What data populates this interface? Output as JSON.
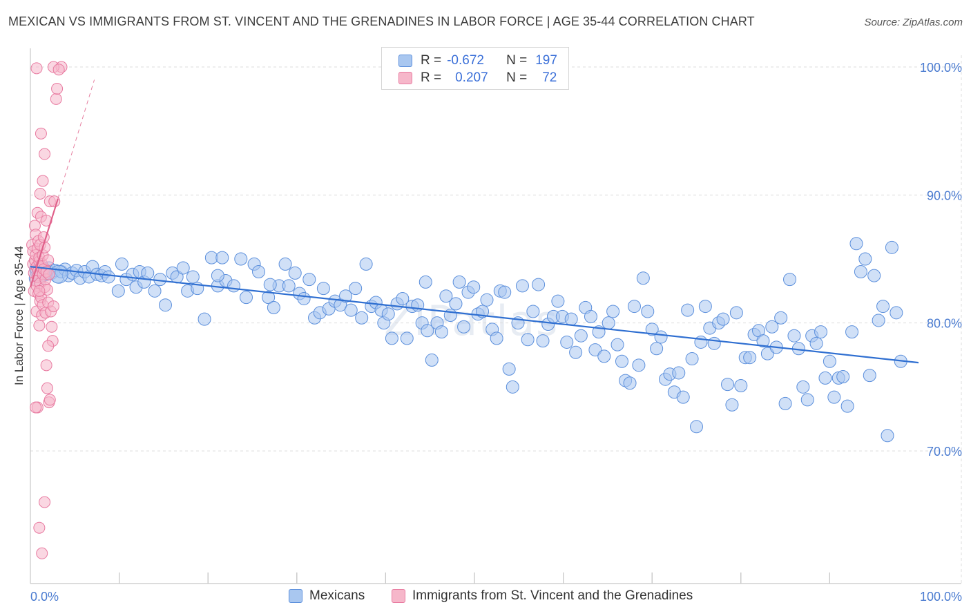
{
  "header": {
    "title": "MEXICAN VS IMMIGRANTS FROM ST. VINCENT AND THE GRENADINES IN LABOR FORCE | AGE 35-44 CORRELATION CHART",
    "source": "Source: ZipAtlas.com"
  },
  "watermark": {
    "main": "ZIP",
    "sub": "atlas"
  },
  "legend": {
    "rows": [
      {
        "r_label": "R =",
        "r_value": "-0.672",
        "n_label": "N =",
        "n_value": "197"
      },
      {
        "r_label": "R =",
        "r_value": "0.207",
        "n_label": "N =",
        "n_value": "72"
      }
    ]
  },
  "bottom_legend": {
    "mexicans": "Mexicans",
    "svg_immigrants": "Immigrants from St. Vincent and the Grenadines"
  },
  "colors": {
    "blue_fill": "#a9c7f0",
    "blue_stroke": "#5b8fdc",
    "blue_line": "#2f6fd1",
    "pink_fill": "#f6b7ca",
    "pink_stroke": "#e87aa0",
    "pink_line": "#e0608a",
    "tick_text": "#4a7bd0"
  },
  "chart_data": {
    "type": "scatter",
    "title": "MEXICAN VS IMMIGRANTS FROM ST. VINCENT AND THE GRENADINES IN LABOR FORCE | AGE 35-44 CORRELATION CHART",
    "xlabel": "",
    "ylabel": "In Labor Force | Age 35-44",
    "xlim": [
      0,
      100
    ],
    "ylim": [
      60,
      104
    ],
    "x_tick_labels": [
      "0.0%",
      "100.0%"
    ],
    "y_ticks": [
      70,
      80,
      90,
      100
    ],
    "y_tick_labels": [
      "70.0%",
      "80.0%",
      "90.0%",
      "100.0%"
    ],
    "grid": true,
    "legend_position": "top-center",
    "series": [
      {
        "name": "Mexicans",
        "r": -0.672,
        "n": 197,
        "trend": {
          "x": [
            0,
            100
          ],
          "y": [
            84.4,
            76.9
          ],
          "style": "solid"
        },
        "points": [
          [
            0.6,
            84.2
          ],
          [
            0.9,
            83.7
          ],
          [
            1.2,
            84.4
          ],
          [
            1.5,
            84.0
          ],
          [
            1.8,
            83.8
          ],
          [
            2.1,
            84.3
          ],
          [
            2.4,
            83.9
          ],
          [
            2.8,
            84.1
          ],
          [
            3.1,
            83.6
          ],
          [
            3.5,
            84.0
          ],
          [
            3.9,
            84.2
          ],
          [
            4.3,
            83.7
          ],
          [
            4.7,
            83.9
          ],
          [
            5.2,
            84.1
          ],
          [
            5.6,
            83.5
          ],
          [
            6.1,
            84.0
          ],
          [
            6.6,
            83.6
          ],
          [
            7.0,
            84.4
          ],
          [
            7.5,
            83.8
          ],
          [
            8.0,
            83.7
          ],
          [
            8.4,
            84.0
          ],
          [
            8.8,
            83.6
          ],
          [
            9.9,
            82.5
          ],
          [
            10.3,
            84.6
          ],
          [
            10.8,
            83.4
          ],
          [
            11.5,
            83.8
          ],
          [
            11.9,
            82.8
          ],
          [
            12.3,
            84.0
          ],
          [
            12.8,
            83.2
          ],
          [
            13.2,
            83.9
          ],
          [
            14.0,
            82.5
          ],
          [
            14.6,
            83.4
          ],
          [
            15.2,
            81.4
          ],
          [
            16.0,
            83.9
          ],
          [
            16.5,
            83.6
          ],
          [
            17.2,
            84.3
          ],
          [
            17.7,
            82.5
          ],
          [
            18.3,
            83.6
          ],
          [
            18.8,
            82.7
          ],
          [
            19.6,
            80.3
          ],
          [
            20.4,
            85.1
          ],
          [
            21.1,
            82.9
          ],
          [
            21.6,
            85.1
          ],
          [
            22.0,
            83.3
          ],
          [
            22.9,
            82.9
          ],
          [
            23.7,
            85.0
          ],
          [
            24.3,
            82.0
          ],
          [
            25.2,
            84.6
          ],
          [
            25.7,
            84.0
          ],
          [
            26.8,
            82.0
          ],
          [
            27.4,
            81.2
          ],
          [
            28.0,
            82.9
          ],
          [
            28.7,
            84.6
          ],
          [
            29.1,
            82.9
          ],
          [
            29.8,
            83.9
          ],
          [
            30.3,
            82.3
          ],
          [
            30.8,
            81.9
          ],
          [
            31.4,
            83.4
          ],
          [
            32.0,
            80.4
          ],
          [
            32.6,
            80.8
          ],
          [
            33.0,
            82.7
          ],
          [
            33.6,
            81.1
          ],
          [
            34.3,
            81.7
          ],
          [
            34.9,
            81.4
          ],
          [
            35.5,
            82.1
          ],
          [
            36.1,
            81.0
          ],
          [
            36.6,
            82.7
          ],
          [
            37.3,
            80.4
          ],
          [
            37.8,
            84.6
          ],
          [
            38.4,
            81.3
          ],
          [
            38.9,
            81.6
          ],
          [
            39.5,
            81.0
          ],
          [
            39.8,
            80.0
          ],
          [
            40.3,
            80.7
          ],
          [
            40.7,
            78.8
          ],
          [
            41.3,
            81.5
          ],
          [
            41.9,
            81.9
          ],
          [
            42.4,
            78.8
          ],
          [
            43.0,
            81.3
          ],
          [
            43.6,
            81.4
          ],
          [
            44.1,
            80.0
          ],
          [
            44.7,
            79.4
          ],
          [
            45.2,
            77.1
          ],
          [
            45.8,
            80.0
          ],
          [
            46.3,
            79.3
          ],
          [
            46.8,
            82.1
          ],
          [
            47.3,
            80.6
          ],
          [
            47.9,
            81.5
          ],
          [
            48.3,
            83.2
          ],
          [
            48.8,
            79.7
          ],
          [
            49.3,
            82.4
          ],
          [
            49.9,
            82.8
          ],
          [
            50.4,
            80.7
          ],
          [
            50.9,
            80.9
          ],
          [
            51.4,
            81.8
          ],
          [
            52.0,
            79.5
          ],
          [
            52.5,
            78.8
          ],
          [
            52.9,
            82.5
          ],
          [
            53.4,
            82.4
          ],
          [
            53.9,
            76.4
          ],
          [
            54.3,
            75.0
          ],
          [
            54.9,
            80.0
          ],
          [
            55.4,
            82.9
          ],
          [
            56.0,
            78.7
          ],
          [
            56.6,
            80.9
          ],
          [
            57.2,
            83.0
          ],
          [
            57.7,
            78.6
          ],
          [
            58.3,
            79.9
          ],
          [
            58.9,
            80.5
          ],
          [
            59.4,
            81.7
          ],
          [
            59.9,
            80.5
          ],
          [
            60.4,
            78.5
          ],
          [
            60.9,
            80.3
          ],
          [
            61.4,
            77.7
          ],
          [
            62.0,
            79.0
          ],
          [
            62.5,
            81.2
          ],
          [
            63.1,
            80.5
          ],
          [
            63.6,
            77.9
          ],
          [
            64.0,
            79.3
          ],
          [
            64.6,
            77.4
          ],
          [
            65.1,
            80.0
          ],
          [
            65.6,
            80.9
          ],
          [
            66.1,
            78.3
          ],
          [
            66.6,
            77.0
          ],
          [
            67.0,
            75.5
          ],
          [
            67.5,
            75.3
          ],
          [
            68.0,
            81.3
          ],
          [
            68.5,
            76.7
          ],
          [
            69.0,
            83.5
          ],
          [
            69.5,
            80.9
          ],
          [
            70.0,
            79.5
          ],
          [
            70.5,
            78.0
          ],
          [
            71.0,
            78.9
          ],
          [
            71.5,
            75.6
          ],
          [
            72.0,
            76.0
          ],
          [
            72.5,
            74.6
          ],
          [
            73.0,
            76.1
          ],
          [
            73.5,
            74.2
          ],
          [
            74.0,
            81.0
          ],
          [
            74.5,
            77.2
          ],
          [
            75.0,
            71.9
          ],
          [
            75.5,
            78.5
          ],
          [
            76.0,
            81.3
          ],
          [
            76.5,
            79.6
          ],
          [
            77.0,
            78.4
          ],
          [
            77.5,
            80.0
          ],
          [
            78.0,
            80.3
          ],
          [
            78.5,
            75.2
          ],
          [
            79.0,
            73.6
          ],
          [
            79.5,
            80.8
          ],
          [
            80.0,
            75.1
          ],
          [
            80.5,
            77.3
          ],
          [
            81.0,
            77.3
          ],
          [
            81.5,
            79.1
          ],
          [
            82.0,
            79.4
          ],
          [
            82.5,
            78.6
          ],
          [
            83.0,
            77.6
          ],
          [
            83.5,
            79.7
          ],
          [
            84.0,
            78.1
          ],
          [
            84.5,
            80.4
          ],
          [
            85.0,
            73.7
          ],
          [
            85.5,
            83.4
          ],
          [
            86.0,
            79.0
          ],
          [
            86.5,
            78.0
          ],
          [
            87.0,
            75.0
          ],
          [
            87.5,
            74.0
          ],
          [
            88.0,
            79.0
          ],
          [
            88.5,
            78.4
          ],
          [
            89.0,
            79.3
          ],
          [
            89.5,
            75.7
          ],
          [
            90.0,
            77.0
          ],
          [
            90.5,
            74.2
          ],
          [
            91.0,
            75.7
          ],
          [
            91.5,
            75.8
          ],
          [
            92.0,
            73.5
          ],
          [
            92.5,
            79.3
          ],
          [
            93.0,
            86.2
          ],
          [
            93.5,
            84.0
          ],
          [
            94.0,
            85.0
          ],
          [
            94.5,
            75.9
          ],
          [
            95.0,
            83.7
          ],
          [
            95.5,
            80.2
          ],
          [
            96.0,
            81.3
          ],
          [
            96.5,
            71.2
          ],
          [
            97.0,
            85.9
          ],
          [
            97.5,
            80.8
          ],
          [
            98.0,
            77.0
          ],
          [
            21.1,
            83.7
          ],
          [
            27.0,
            83.0
          ],
          [
            44.5,
            83.2
          ]
        ]
      },
      {
        "name": "Immigrants from St. Vincent and the Grenadines",
        "r": 0.207,
        "n": 72,
        "trend": {
          "x": [
            0,
            3.1
          ],
          "y": [
            82.8,
            89.7
          ],
          "style": "solid"
        },
        "trend_extension": {
          "x": [
            3.1,
            7.2
          ],
          "y": [
            89.7,
            99.0
          ],
          "style": "dashed"
        },
        "points": [
          [
            0.2,
            86.1
          ],
          [
            0.3,
            84.6
          ],
          [
            0.3,
            85.6
          ],
          [
            0.4,
            83.9
          ],
          [
            0.4,
            82.5
          ],
          [
            0.5,
            84.9
          ],
          [
            0.5,
            87.6
          ],
          [
            0.6,
            83.3
          ],
          [
            0.6,
            86.9
          ],
          [
            0.6,
            85.3
          ],
          [
            0.7,
            82.9
          ],
          [
            0.7,
            84.4
          ],
          [
            0.7,
            80.9
          ],
          [
            0.8,
            85.8
          ],
          [
            0.8,
            83.6
          ],
          [
            0.8,
            88.6
          ],
          [
            0.9,
            84.1
          ],
          [
            0.9,
            86.4
          ],
          [
            0.9,
            82.3
          ],
          [
            1.0,
            84.8
          ],
          [
            1.0,
            85.1
          ],
          [
            1.0,
            79.8
          ],
          [
            1.1,
            83.1
          ],
          [
            1.1,
            81.7
          ],
          [
            1.1,
            86.1
          ],
          [
            1.2,
            84.4
          ],
          [
            1.2,
            88.3
          ],
          [
            1.2,
            82.0
          ],
          [
            1.3,
            84.6
          ],
          [
            1.3,
            80.6
          ],
          [
            1.4,
            85.3
          ],
          [
            1.4,
            83.8
          ],
          [
            1.4,
            81.4
          ],
          [
            1.5,
            86.7
          ],
          [
            1.5,
            84.2
          ],
          [
            1.6,
            82.8
          ],
          [
            1.6,
            85.9
          ],
          [
            1.7,
            83.4
          ],
          [
            1.7,
            80.8
          ],
          [
            1.8,
            84.0
          ],
          [
            1.8,
            88.0
          ],
          [
            1.9,
            82.6
          ],
          [
            2.0,
            84.9
          ],
          [
            2.0,
            81.6
          ],
          [
            2.1,
            83.8
          ],
          [
            2.2,
            89.5
          ],
          [
            2.3,
            80.9
          ],
          [
            2.4,
            79.7
          ],
          [
            2.5,
            78.6
          ],
          [
            2.6,
            81.3
          ],
          [
            0.7,
            99.9
          ],
          [
            1.0,
            82.5
          ],
          [
            1.2,
            94.8
          ],
          [
            1.4,
            91.1
          ],
          [
            1.6,
            93.2
          ],
          [
            1.8,
            76.7
          ],
          [
            2.1,
            73.8
          ],
          [
            2.2,
            74.0
          ],
          [
            2.0,
            78.2
          ],
          [
            1.9,
            74.9
          ],
          [
            1.1,
            90.1
          ],
          [
            0.8,
            73.4
          ],
          [
            1.6,
            66.0
          ],
          [
            1.0,
            64.0
          ],
          [
            1.3,
            62.0
          ],
          [
            2.7,
            89.5
          ],
          [
            3.5,
            100.0
          ],
          [
            2.6,
            100.0
          ],
          [
            2.9,
            97.5
          ],
          [
            3.2,
            99.8
          ],
          [
            3.0,
            98.3
          ],
          [
            0.6,
            73.4
          ]
        ]
      }
    ]
  }
}
